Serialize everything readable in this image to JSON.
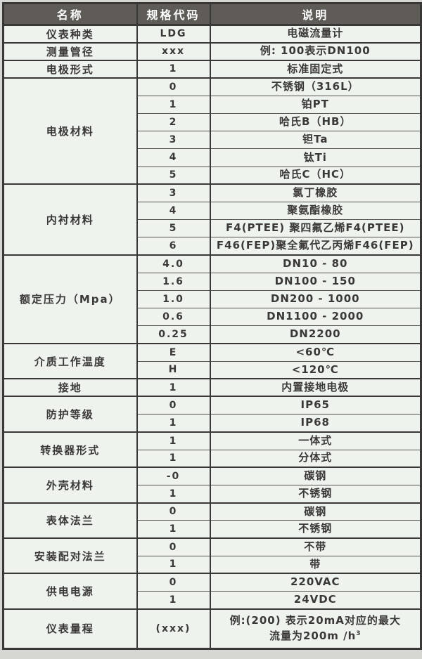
{
  "colors": {
    "header_bg": "#5f5b57",
    "header_text": "#ffffff",
    "cell_bg": "#eef3ee",
    "border_dark": "#3a3836",
    "border_light": "#55534f",
    "text": "#3b3937",
    "page_bg": "#d6d6d2"
  },
  "table": {
    "headers": [
      "名称",
      "规格代码",
      "说明"
    ],
    "groups": [
      {
        "name": "仪表种类",
        "rows": [
          {
            "code": "LDG",
            "desc": "电磁流量计"
          }
        ]
      },
      {
        "name": "测量管径",
        "rows": [
          {
            "code": "xxx",
            "desc": "例: 100表示DN100"
          }
        ]
      },
      {
        "name": "电极形式",
        "rows": [
          {
            "code": "1",
            "desc": "标准固定式"
          }
        ]
      },
      {
        "name": "电极材料",
        "rows": [
          {
            "code": "0",
            "desc": "不锈钢（316L）"
          },
          {
            "code": "1",
            "desc": "铂PT"
          },
          {
            "code": "2",
            "desc": "哈氏B（HB）"
          },
          {
            "code": "3",
            "desc": "钽Ta"
          },
          {
            "code": "4",
            "desc": "钛Ti"
          },
          {
            "code": "5",
            "desc": "哈氏C（HC）"
          }
        ]
      },
      {
        "name": "内衬材料",
        "rows": [
          {
            "code": "3",
            "desc": "氯丁橡胶"
          },
          {
            "code": "4",
            "desc": "聚氨酯橡胶"
          },
          {
            "code": "5",
            "desc": "F4(PTEE) 聚四氟乙烯F4(PTEE)"
          },
          {
            "code": "6",
            "desc": "F46(FEP)聚全氟代乙丙烯F46(FEP)"
          }
        ]
      },
      {
        "name": "额定压力（Mpa）",
        "rows": [
          {
            "code": "4.0",
            "desc": "DN10 - 80"
          },
          {
            "code": "1.6",
            "desc": "DN100 - 150"
          },
          {
            "code": "1.0",
            "desc": "DN200 - 1000"
          },
          {
            "code": "0.6",
            "desc": "DN1100 - 2000"
          },
          {
            "code": "0.25",
            "desc": "DN2200"
          }
        ]
      },
      {
        "name": "介质工作温度",
        "rows": [
          {
            "code": "E",
            "desc": "<60℃"
          },
          {
            "code": "H",
            "desc": "<120℃"
          }
        ]
      },
      {
        "name": "接地",
        "rows": [
          {
            "code": "1",
            "desc": "内置接地电极"
          }
        ]
      },
      {
        "name": "防护等级",
        "rows": [
          {
            "code": "0",
            "desc": "IP65"
          },
          {
            "code": "1",
            "desc": "IP68"
          }
        ]
      },
      {
        "name": "转换器形式",
        "rows": [
          {
            "code": "1",
            "desc": "一体式"
          },
          {
            "code": "1",
            "desc": "分体式"
          }
        ]
      },
      {
        "name": "外壳材料",
        "rows": [
          {
            "code": "-0",
            "desc": "碳钢"
          },
          {
            "code": "1",
            "desc": "不锈钢"
          }
        ]
      },
      {
        "name": "表体法兰",
        "rows": [
          {
            "code": "0",
            "desc": "碳钢"
          },
          {
            "code": "1",
            "desc": "不锈钢"
          }
        ]
      },
      {
        "name": "安装配对法兰",
        "rows": [
          {
            "code": "0",
            "desc": "不带"
          },
          {
            "code": "1",
            "desc": "带"
          }
        ]
      },
      {
        "name": "供电电源",
        "rows": [
          {
            "code": "0",
            "desc": "220VAC"
          },
          {
            "code": "1",
            "desc": "24VDC"
          }
        ]
      },
      {
        "name": "仪表量程",
        "tall": true,
        "rows": [
          {
            "code": "(xxx)",
            "desc_lines": [
              "例:(200) 表示20mA对应的最大",
              "流量为200m /h"
            ],
            "desc_sup": "3"
          }
        ]
      }
    ]
  }
}
